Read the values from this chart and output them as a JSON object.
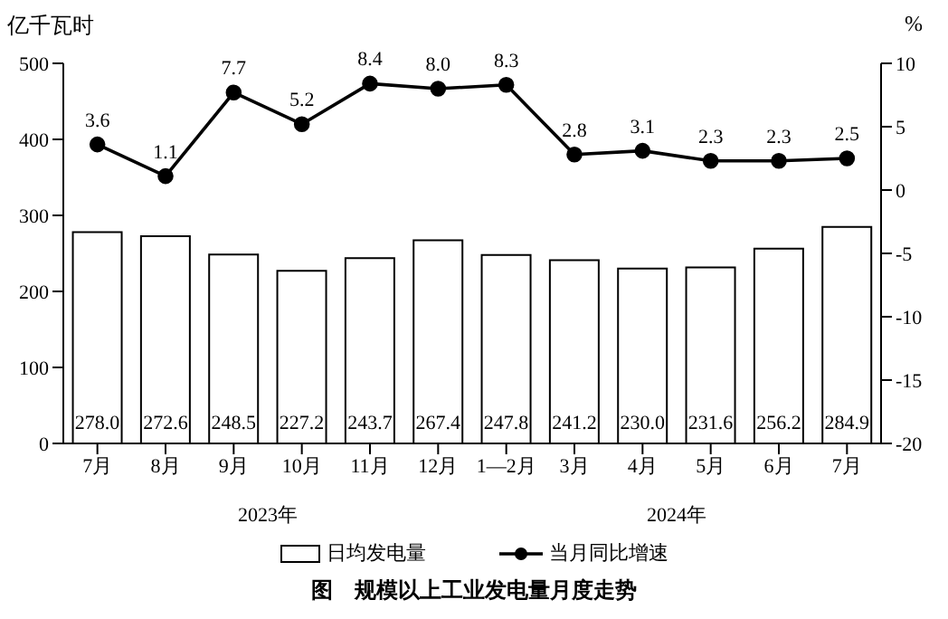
{
  "chart_data": {
    "type": "bar",
    "title": "图　规模以上工业发电量月度走势",
    "ylabel": "亿千瓦时",
    "y2label": "%",
    "categories": [
      "7月",
      "8月",
      "9月",
      "10月",
      "11月",
      "12月",
      "1—2月",
      "3月",
      "4月",
      "5月",
      "6月",
      "7月"
    ],
    "series": [
      {
        "name": "日均发电量",
        "color": "#ffffff",
        "values": [
          278.0,
          272.6,
          248.5,
          227.2,
          243.7,
          267.4,
          247.8,
          241.2,
          230.0,
          231.6,
          256.2,
          284.9
        ],
        "value_labels": [
          "278.0",
          "272.6",
          "248.5",
          "227.2",
          "243.7",
          "267.4",
          "247.8",
          "241.2",
          "230.0",
          "231.6",
          "256.2",
          "284.9"
        ]
      },
      {
        "name": "当月同比增速",
        "type": "line",
        "axis": "y2",
        "color": "#000000",
        "values": [
          3.6,
          1.1,
          7.7,
          5.2,
          8.4,
          8.0,
          8.3,
          2.8,
          3.1,
          2.3,
          2.3,
          2.5
        ],
        "value_labels": [
          "3.6",
          "1.1",
          "7.7",
          "5.2",
          "8.4",
          "8.0",
          "8.3",
          "2.8",
          "3.1",
          "2.3",
          "2.3",
          "2.5"
        ]
      }
    ],
    "ylim": [
      0,
      500
    ],
    "yticks": [
      0,
      100,
      200,
      300,
      400,
      500
    ],
    "y2lim": [
      -20,
      10
    ],
    "y2ticks": [
      -20,
      -15,
      -10,
      -5,
      0,
      5,
      10
    ],
    "annotations": [
      "2023年",
      "2024年"
    ],
    "legend": "bottom",
    "marker": "circle",
    "line_style": "solid"
  }
}
